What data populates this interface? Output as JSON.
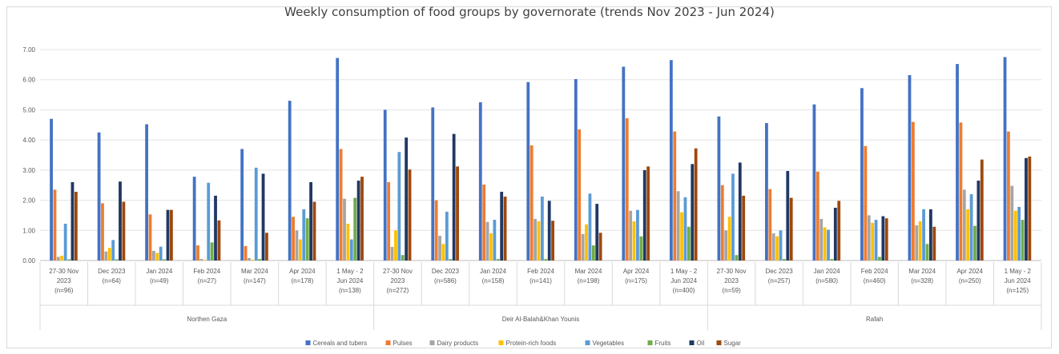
{
  "chart_data": {
    "type": "bar",
    "title": "Weekly consumption of food groups by governorate (trends Nov 2023 - Jun 2024)",
    "xlabel": "",
    "ylabel": "",
    "ylim": [
      0,
      7
    ],
    "yticks": [
      "0.00",
      "1.00",
      "2.00",
      "3.00",
      "4.00",
      "5.00",
      "6.00",
      "7.00"
    ],
    "grid": true,
    "legend_position": "bottom",
    "groups": [
      {
        "name": "Northen Gaza",
        "count": 7
      },
      {
        "name": "Deir Al-Balah&Khan Younis",
        "count": 7
      },
      {
        "name": "Rafah",
        "count": 7
      }
    ],
    "categories": [
      [
        "27-30 Nov",
        "2023",
        "(n=96)"
      ],
      [
        "Dec 2023",
        "(n=64)"
      ],
      [
        "Jan 2024",
        "(n=49)"
      ],
      [
        "Feb 2024",
        "(n=27)"
      ],
      [
        "Mar 2024",
        "(n=147)"
      ],
      [
        "Apr 2024",
        "(n=178)"
      ],
      [
        "1 May - 2",
        "Jun 2024",
        "(n=138)"
      ],
      [
        "27-30 Nov",
        "2023",
        "(n=272)"
      ],
      [
        "Dec 2023",
        "(n=586)"
      ],
      [
        "Jan 2024",
        "(n=158)"
      ],
      [
        "Feb 2024",
        "(n=141)"
      ],
      [
        "Mar 2024",
        "(n=198)"
      ],
      [
        "Apr 2024",
        "(n=175)"
      ],
      [
        "1 May - 2",
        "Jun 2024",
        "(n=400)"
      ],
      [
        "27-30 Nov",
        "2023",
        "(n=59)"
      ],
      [
        "Dec 2023",
        "(n=257)"
      ],
      [
        "Jan 2024",
        "(n=580)"
      ],
      [
        "Feb 2024",
        "(n=460)"
      ],
      [
        "Mar 2024",
        "(n=328)"
      ],
      [
        "Apr 2024",
        "(n=250)"
      ],
      [
        "1 May - 2",
        "Jun 2024",
        "(n=125)"
      ]
    ],
    "series": [
      {
        "name": "Cereals and tubers",
        "color": "#4472c4",
        "values": [
          4.7,
          4.25,
          4.52,
          2.78,
          3.7,
          5.3,
          6.72,
          5.0,
          5.08,
          5.25,
          5.92,
          6.02,
          6.43,
          6.65,
          4.78,
          4.56,
          5.18,
          5.72,
          6.15,
          6.52,
          6.75
        ]
      },
      {
        "name": "Pulses",
        "color": "#ed7d31",
        "values": [
          2.35,
          1.9,
          1.53,
          0.5,
          0.48,
          1.45,
          3.7,
          2.6,
          2.0,
          2.52,
          3.82,
          4.35,
          4.72,
          4.28,
          2.5,
          2.37,
          2.95,
          3.8,
          4.6,
          4.58,
          4.28
        ]
      },
      {
        "name": "Dairy products",
        "color": "#a5a5a5",
        "values": [
          0.12,
          0.3,
          0.32,
          0.05,
          0.08,
          1.0,
          2.05,
          0.45,
          0.82,
          1.28,
          1.38,
          0.88,
          1.65,
          2.3,
          1.0,
          0.9,
          1.38,
          1.5,
          1.17,
          2.35,
          2.48
        ]
      },
      {
        "name": "Protein-rich foods",
        "color": "#ffc000",
        "values": [
          0.16,
          0.42,
          0.25,
          0.02,
          0.03,
          0.7,
          1.22,
          1.0,
          0.55,
          0.9,
          1.3,
          1.2,
          1.3,
          1.6,
          1.45,
          0.8,
          1.1,
          1.25,
          1.3,
          1.7,
          1.65
        ]
      },
      {
        "name": "Vegetables",
        "color": "#5b9bd5",
        "values": [
          1.22,
          0.68,
          0.46,
          2.58,
          3.08,
          1.7,
          0.7,
          3.6,
          1.62,
          1.35,
          2.12,
          2.22,
          1.68,
          2.1,
          2.88,
          1.0,
          1.02,
          1.35,
          1.7,
          2.2,
          1.78
        ]
      },
      {
        "name": "Fruits",
        "color": "#70ad47",
        "values": [
          0.04,
          0.04,
          0.04,
          0.6,
          0.05,
          1.4,
          2.08,
          0.18,
          0.05,
          0.05,
          0.05,
          0.5,
          0.8,
          1.12,
          0.18,
          0.05,
          0.05,
          0.12,
          0.55,
          1.15,
          1.35
        ]
      },
      {
        "name": "Oil",
        "color": "#203864",
        "values": [
          2.6,
          2.62,
          1.68,
          2.15,
          2.88,
          2.6,
          2.65,
          4.08,
          4.2,
          2.28,
          1.98,
          1.88,
          3.0,
          3.2,
          3.25,
          2.97,
          1.75,
          1.47,
          1.7,
          2.65,
          3.4
        ]
      },
      {
        "name": "Sugar",
        "color": "#9e480e",
        "values": [
          2.28,
          1.95,
          1.68,
          1.33,
          0.92,
          1.95,
          2.78,
          3.02,
          3.12,
          2.12,
          1.32,
          0.92,
          3.12,
          3.72,
          2.15,
          2.08,
          1.98,
          1.4,
          1.12,
          3.35,
          3.45
        ]
      }
    ]
  }
}
